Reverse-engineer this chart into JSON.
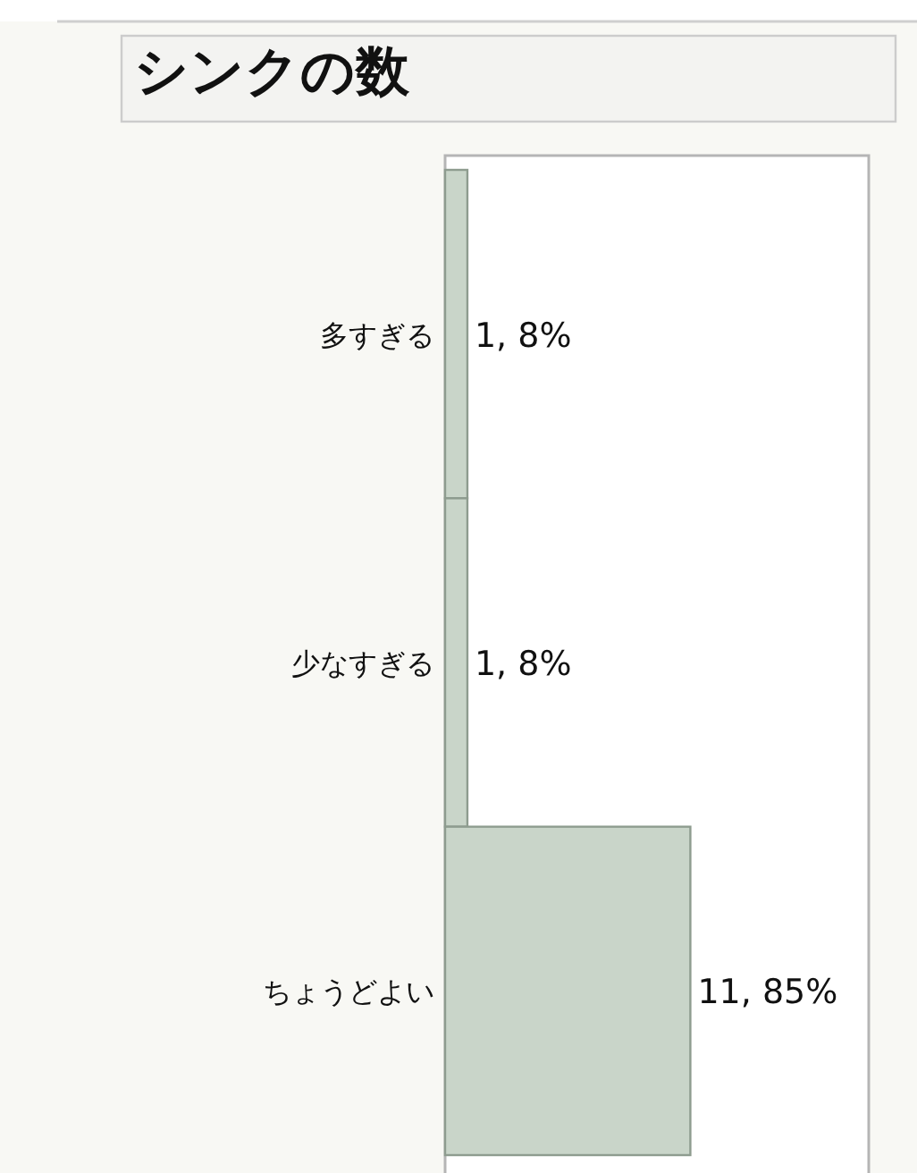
{
  "chart_data": {
    "type": "bar",
    "orientation": "horizontal",
    "title": "シンクの数",
    "categories": [
      "多すぎる",
      "少なすぎる",
      "ちょうどよい"
    ],
    "values": [
      1,
      1,
      11
    ],
    "value_labels": [
      "1, 8%",
      "1, 8%",
      "11, 85%"
    ],
    "color": "#c9d5c9",
    "xlim": [
      0,
      19
    ],
    "tick_labels": "y"
  }
}
